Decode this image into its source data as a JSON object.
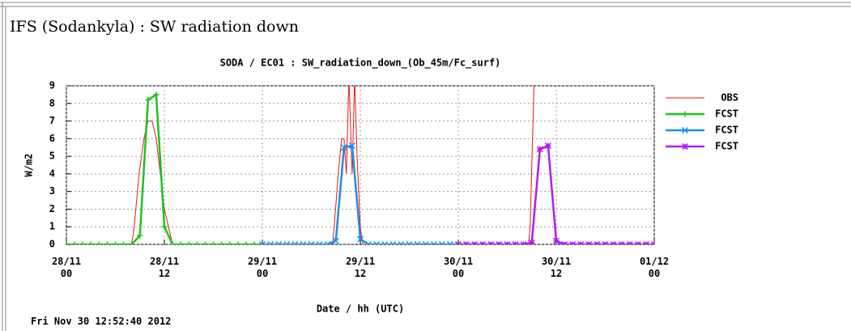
{
  "page_title": "IFS (Sodankyla) : SW radiation down",
  "timestamp": "Fri Nov 30 12:52:40 2012",
  "chart_data": {
    "type": "line",
    "title": "SODA / EC01 : SW_radiation_down_(Ob_45m/Fc_surf)",
    "x_label": "Date / hh (UTC)",
    "y_label": "W/m2",
    "xlim": [
      0,
      72
    ],
    "ylim": [
      0,
      9
    ],
    "xticks": [
      {
        "value": 0,
        "label": "28/11\n00"
      },
      {
        "value": 12,
        "label": "28/11\n12"
      },
      {
        "value": 24,
        "label": "29/11\n00"
      },
      {
        "value": 36,
        "label": "29/11\n12"
      },
      {
        "value": 48,
        "label": "30/11\n00"
      },
      {
        "value": 60,
        "label": "30/11\n12"
      },
      {
        "value": 72,
        "label": "01/12\n00"
      }
    ],
    "yticks": [
      0,
      1,
      2,
      3,
      4,
      5,
      6,
      7,
      8,
      9
    ],
    "grid": true,
    "legend": "right",
    "series": [
      {
        "name": "OBS",
        "color": "#e8191c",
        "marker": "none",
        "x": [
          0,
          8.0,
          8.3,
          8.9,
          9.5,
          10.0,
          10.5,
          11.0,
          11.5,
          12.0,
          12.5,
          13.0,
          32.6,
          32.8,
          33.3,
          33.7,
          34.0,
          34.3,
          34.6,
          35.0,
          35.3,
          35.6,
          36.0,
          36.3,
          56.6,
          56.8,
          57.3
        ],
        "values": [
          0,
          0,
          1,
          4,
          6,
          7,
          7,
          6,
          4,
          2,
          1,
          0,
          0,
          1,
          4,
          6,
          6,
          4,
          9.5,
          4,
          9.5,
          5,
          1,
          0,
          0,
          1,
          9.5
        ]
      },
      {
        "name": "FCST",
        "color": "#1ec31e",
        "marker": "plus",
        "x": [
          0,
          1,
          2,
          3,
          4,
          5,
          6,
          7,
          8,
          9,
          10,
          11,
          12,
          13,
          14,
          15,
          16,
          17,
          18,
          19,
          20,
          21,
          22,
          23,
          24
        ],
        "values": [
          0,
          0,
          0,
          0,
          0,
          0,
          0,
          0,
          0,
          0.5,
          8.2,
          8.5,
          1.0,
          0,
          0,
          0,
          0,
          0,
          0,
          0,
          0,
          0,
          0,
          0,
          0
        ]
      },
      {
        "name": "FCST",
        "color": "#1e8fe6",
        "marker": "cross",
        "x": [
          24,
          25,
          26,
          27,
          28,
          29,
          30,
          31,
          32,
          33,
          34,
          35,
          36,
          37,
          38,
          39,
          40,
          41,
          42,
          43,
          44,
          45,
          46,
          47,
          48
        ],
        "values": [
          0,
          0,
          0,
          0,
          0,
          0,
          0,
          0,
          0,
          0.2,
          5.5,
          5.6,
          0.3,
          0,
          0,
          0,
          0,
          0,
          0,
          0,
          0,
          0,
          0,
          0,
          0
        ]
      },
      {
        "name": "FCST",
        "color": "#b21ee6",
        "marker": "star",
        "x": [
          48,
          49,
          50,
          51,
          52,
          53,
          54,
          55,
          56,
          57,
          58,
          59,
          60,
          61,
          62,
          63,
          64,
          65,
          66,
          67,
          68,
          69,
          70,
          71,
          72
        ],
        "values": [
          0,
          0,
          0,
          0,
          0,
          0,
          0,
          0,
          0,
          0.1,
          5.4,
          5.6,
          0.2,
          0,
          0,
          0,
          0,
          0,
          0,
          0,
          0,
          0,
          0,
          0,
          0
        ]
      }
    ]
  }
}
